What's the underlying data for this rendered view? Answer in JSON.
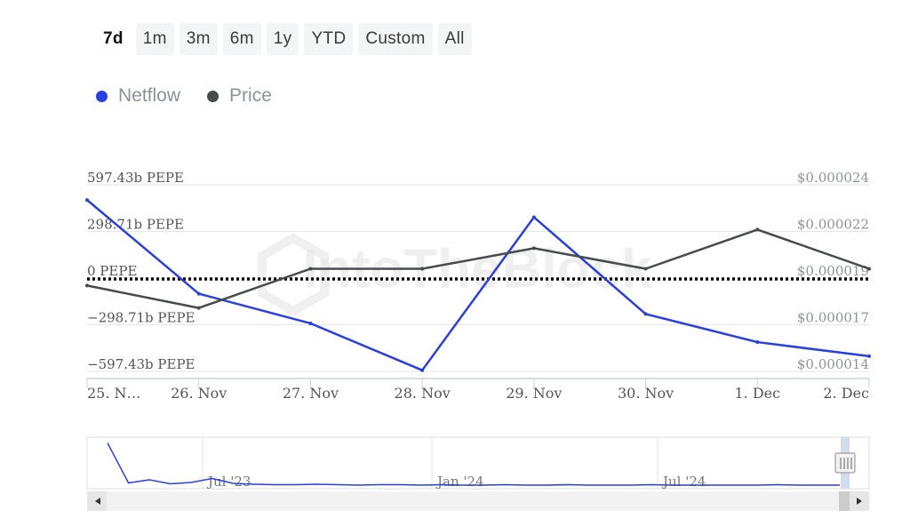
{
  "range_selector": {
    "buttons": [
      "7d",
      "1m",
      "3m",
      "6m",
      "1y",
      "YTD",
      "Custom",
      "All"
    ],
    "active": "7d"
  },
  "legend": {
    "items": [
      {
        "label": "Netflow",
        "color": "#2a3fe0"
      },
      {
        "label": "Price",
        "color": "#474b4e"
      }
    ]
  },
  "watermark": "IntoTheBlock",
  "colors": {
    "netflow": "#2a3fe0",
    "price": "#474b4e",
    "zero_line": "#000000",
    "grid": "#e6e6e6",
    "axis_text": "#555555",
    "right_axis_text": "#8f9397"
  },
  "chart_data": {
    "type": "line",
    "categories": [
      "25. N…",
      "26. Nov",
      "27. Nov",
      "28. Nov",
      "29. Nov",
      "30. Nov",
      "1. Dec",
      "2. Dec"
    ],
    "left_axis": {
      "tick_labels": [
        "597.43b PEPE",
        "298.71b PEPE",
        "0 PEPE",
        "−298.71b PEPE",
        "−597.43b PEPE"
      ],
      "tick_values": [
        597.43,
        298.71,
        0,
        -298.71,
        -597.43
      ],
      "unit": "b PEPE",
      "range": [
        -597.43,
        597.43
      ]
    },
    "right_axis": {
      "tick_labels": [
        "$0.000024",
        "$0.000022",
        "$0.000019",
        "$0.000017",
        "$0.000014"
      ],
      "tick_values": [
        2.4e-05,
        2.15e-05,
        1.9e-05,
        1.65e-05,
        1.4e-05
      ],
      "range": [
        1.4e-05,
        2.4e-05
      ]
    },
    "series": [
      {
        "name": "Netflow",
        "axis": "left",
        "values": [
          500,
          -100,
          -290,
          -590,
          390,
          -230,
          -410,
          -500
        ]
      },
      {
        "name": "Price",
        "axis": "right",
        "values": [
          1.86e-05,
          1.74e-05,
          1.95e-05,
          1.95e-05,
          2.06e-05,
          1.95e-05,
          2.16e-05,
          1.95e-05
        ]
      }
    ],
    "grid": true,
    "zero_line": "dotted",
    "legend_position": "top-left"
  },
  "navigator": {
    "labels": [
      "Jul '23",
      "Jan '24",
      "Jul '24"
    ],
    "series": [
      0.95,
      0.05,
      0.12,
      0.03,
      0.06,
      0.15,
      0.04,
      0.02,
      0.01,
      0.01,
      0.02,
      0.01,
      0.0,
      0.01,
      0.01,
      0.0,
      0.01,
      0.0,
      0.0,
      0.01,
      0.0,
      0.0,
      0.01,
      0.0,
      0.0,
      0.0,
      0.01,
      0.0,
      0.0,
      0.0,
      0.0,
      0.0,
      0.01,
      0.0,
      0.0,
      0.0
    ]
  }
}
